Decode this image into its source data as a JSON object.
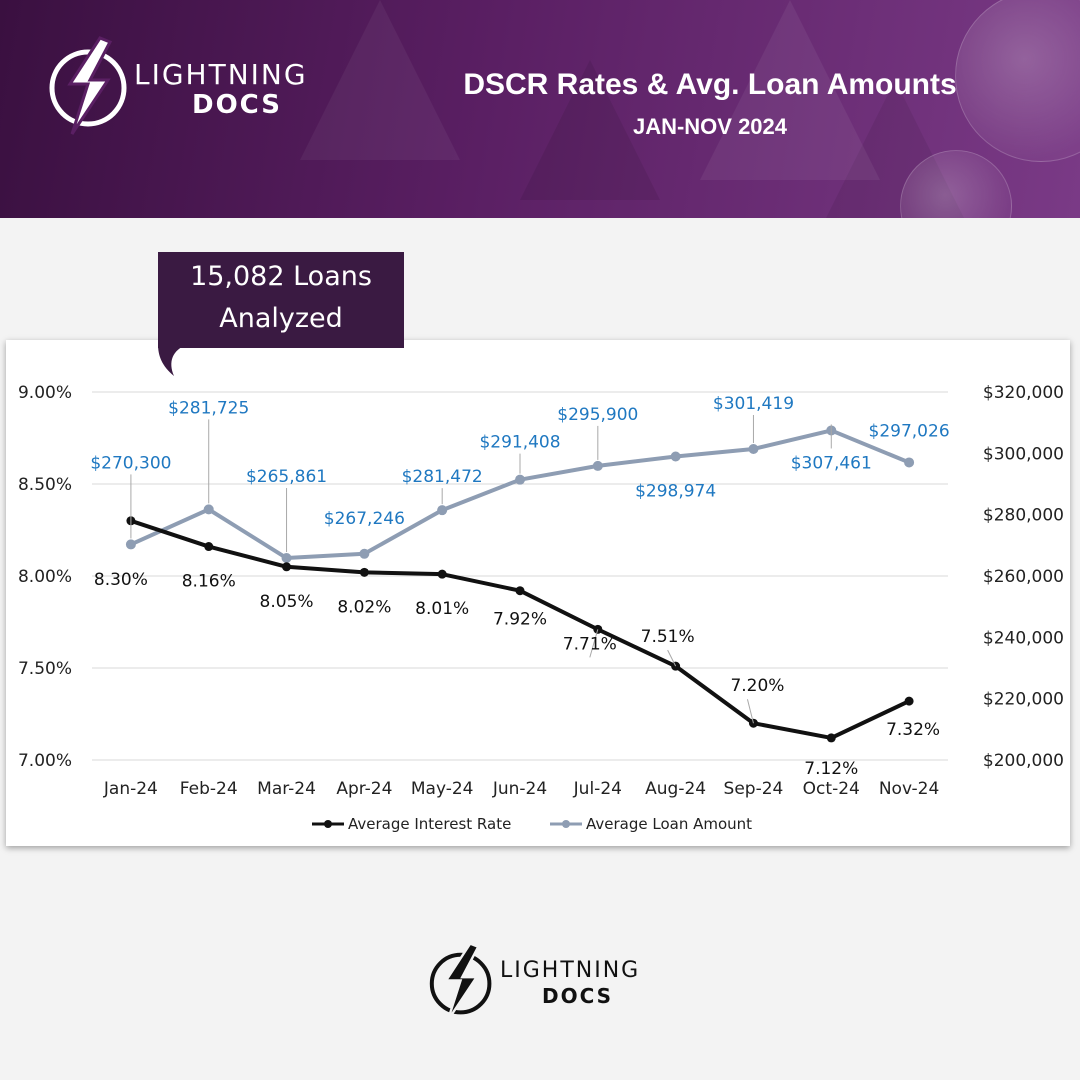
{
  "header": {
    "title": "DSCR Rates & Avg. Loan Amounts",
    "subtitle": "JAN-NOV 2024",
    "brand_line1": "LIGHTNING",
    "brand_line2": "DOCS",
    "brand_icon": "lightning-bolt-icon",
    "background_color": "#5a1f63"
  },
  "callout": {
    "line1": "15,082 Loans",
    "line2": "Analyzed"
  },
  "footer": {
    "brand_line1": "LIGHTNING",
    "brand_line2": "DOCS",
    "brand_icon": "lightning-bolt-icon"
  },
  "chart_data": {
    "type": "line",
    "categories": [
      "Jan-24",
      "Feb-24",
      "Mar-24",
      "Apr-24",
      "May-24",
      "Jun-24",
      "Jul-24",
      "Aug-24",
      "Sep-24",
      "Oct-24",
      "Nov-24"
    ],
    "series": [
      {
        "name": "Average Interest Rate",
        "axis": "left",
        "color": "#111111",
        "values": [
          8.3,
          8.16,
          8.05,
          8.02,
          8.01,
          7.92,
          7.71,
          7.51,
          7.2,
          7.12,
          7.32
        ],
        "labels": [
          "8.30%",
          "8.16%",
          "8.05%",
          "8.02%",
          "8.01%",
          "7.92%",
          "7.71%",
          "7.51%",
          "7.20%",
          "7.12%",
          "7.32%"
        ]
      },
      {
        "name": "Average Loan Amount",
        "axis": "right",
        "color": "#8e9db3",
        "label_color": "#1f78c1",
        "values": [
          270300,
          281725,
          265861,
          267246,
          281472,
          291408,
          295900,
          298974,
          301419,
          307461,
          297026
        ],
        "labels": [
          "$270,300",
          "$281,725",
          "$265,861",
          "$267,246",
          "$281,472",
          "$291,408",
          "$295,900",
          "$298,974",
          "$301,419",
          "$307,461",
          "$297,026"
        ]
      }
    ],
    "y_left": {
      "ylim": [
        7.0,
        9.0
      ],
      "ticks": [
        7.0,
        7.5,
        8.0,
        8.5,
        9.0
      ],
      "tick_labels": [
        "7.00%",
        "7.50%",
        "8.00%",
        "8.50%",
        "9.00%"
      ]
    },
    "y_right": {
      "ylim": [
        200000,
        320000
      ],
      "ticks": [
        200000,
        220000,
        240000,
        260000,
        280000,
        300000,
        320000
      ],
      "tick_labels": [
        "$200,000",
        "$220,000",
        "$240,000",
        "$260,000",
        "$280,000",
        "$300,000",
        "$320,000"
      ]
    },
    "grid": true,
    "legend": "bottom"
  }
}
